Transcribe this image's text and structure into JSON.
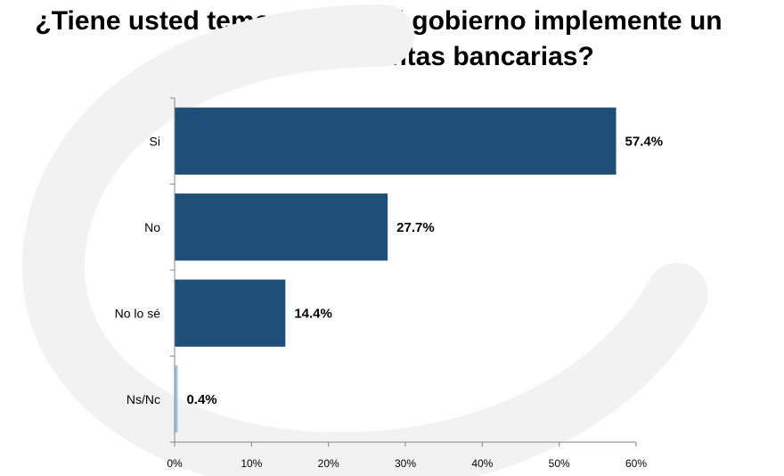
{
  "chart_data": {
    "type": "bar",
    "orientation": "horizontal",
    "title_lines": [
      "¿Tiene usted temor de que el gobierno implemente un",
      "corralito a las cuentas bancarias?"
    ],
    "categories": [
      "Si",
      "No",
      "No lo sé",
      "Ns/Nc"
    ],
    "values": [
      57.4,
      27.7,
      14.4,
      0.4
    ],
    "value_labels": [
      "57.4%",
      "27.7%",
      "14.4%",
      "0.4%"
    ],
    "bar_colors": [
      "#1f4e79",
      "#1f4e79",
      "#1f4e79",
      "#9dc3e6"
    ],
    "xlim": [
      0,
      60
    ],
    "x_ticks": [
      0,
      10,
      20,
      30,
      40,
      50,
      60
    ],
    "x_tick_labels": [
      "0%",
      "10%",
      "20%",
      "30%",
      "40%",
      "50%",
      "60%"
    ],
    "xlabel": "",
    "ylabel": "",
    "grid": false
  }
}
